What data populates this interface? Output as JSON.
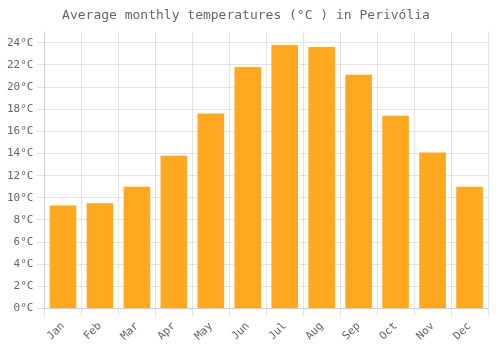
{
  "chart_data": {
    "type": "bar",
    "title": "Average monthly temperatures (°C ) in Perivólia",
    "categories": [
      "Jan",
      "Feb",
      "Mar",
      "Apr",
      "May",
      "Jun",
      "Jul",
      "Aug",
      "Sep",
      "Oct",
      "Nov",
      "Dec"
    ],
    "values": [
      9.3,
      9.5,
      11.0,
      13.8,
      17.6,
      21.8,
      23.8,
      23.6,
      21.1,
      17.4,
      14.1,
      11.0
    ],
    "color": "#FFA820",
    "ylim": [
      0,
      25
    ],
    "yticks": [
      {
        "value": 0,
        "label": "0°C"
      },
      {
        "value": 2,
        "label": "2°C"
      },
      {
        "value": 4,
        "label": "4°C"
      },
      {
        "value": 6,
        "label": "6°C"
      },
      {
        "value": 8,
        "label": "8°C"
      },
      {
        "value": 10,
        "label": "10°C"
      },
      {
        "value": 12,
        "label": "12°C"
      },
      {
        "value": 14,
        "label": "14°C"
      },
      {
        "value": 16,
        "label": "16°C"
      },
      {
        "value": 18,
        "label": "18°C"
      },
      {
        "value": 20,
        "label": "20°C"
      },
      {
        "value": 22,
        "label": "22°C"
      },
      {
        "value": 24,
        "label": "24°C"
      }
    ],
    "grid": true
  }
}
